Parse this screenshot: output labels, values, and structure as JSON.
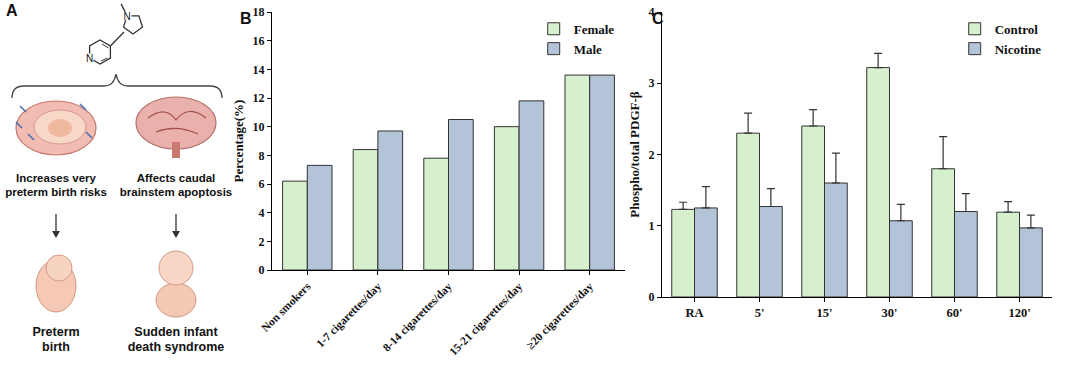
{
  "panel_labels": [
    "A",
    "B",
    "C"
  ],
  "diagram": {
    "molecule_atoms": [
      "N",
      "N"
    ],
    "branches": [
      {
        "effect": [
          "Increases very",
          "preterm birth risks"
        ],
        "outcome": [
          "Preterm",
          "birth"
        ]
      },
      {
        "effect": [
          "Affects caudal",
          "brainstem apoptosis"
        ],
        "outcome": [
          "Sudden infant",
          "death syndrome"
        ]
      }
    ]
  },
  "chart_data": [
    {
      "type": "bar",
      "categories": [
        "Non smokers",
        "1-7 cigarettes/day",
        "8-14 cigarettes/day",
        "15-21 cigarettes/day",
        "≥20 cigarettes/day"
      ],
      "series": [
        {
          "name": "Female",
          "color": "#d6efcc",
          "values": [
            6.2,
            8.4,
            7.8,
            10.0,
            13.6
          ]
        },
        {
          "name": "Male",
          "color": "#b3c3d8",
          "values": [
            7.3,
            9.7,
            10.5,
            11.8,
            13.6
          ]
        }
      ],
      "y_label": "Percentage(%)",
      "ylim": [
        0,
        18
      ],
      "yticks": [
        0,
        2,
        4,
        6,
        8,
        10,
        12,
        14,
        16,
        18
      ],
      "legend": "upper right",
      "grid": false
    },
    {
      "type": "bar",
      "categories": [
        "RA",
        "5'",
        "15'",
        "30'",
        "60'",
        "120'"
      ],
      "series": [
        {
          "name": "Control",
          "color": "#d6efcc",
          "values": [
            1.23,
            2.3,
            2.4,
            3.22,
            1.8,
            1.19
          ],
          "errors": [
            0.1,
            0.28,
            0.23,
            0.2,
            0.45,
            0.15
          ]
        },
        {
          "name": "Nicotine",
          "color": "#b3c3d8",
          "values": [
            1.25,
            1.27,
            1.6,
            1.07,
            1.2,
            0.97
          ],
          "errors": [
            0.3,
            0.25,
            0.42,
            0.23,
            0.25,
            0.18
          ]
        }
      ],
      "y_label": "Phospho/total PDGF-β",
      "ylim": [
        0,
        4
      ],
      "yticks": [
        0,
        1,
        2,
        3,
        4
      ],
      "legend": "upper right",
      "grid": false
    }
  ]
}
